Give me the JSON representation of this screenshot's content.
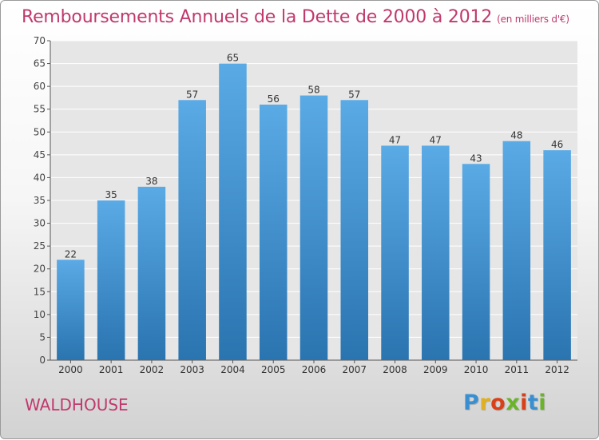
{
  "title": "Remboursements Annuels de la Dette de 2000 à 2012",
  "unit": "(en milliers d'€)",
  "commune": "WALDHOUSE",
  "logo": {
    "text": "Proxiti",
    "colors": [
      "#3a8fd0",
      "#e0b020",
      "#d8401a",
      "#6ab42a",
      "#d8401a",
      "#3a8fd0",
      "#6ab42a"
    ]
  },
  "colors": {
    "title": "#c0396d",
    "bar_top": "#5aaae6",
    "bar_bottom": "#2a74b0",
    "grid": "#ffffff"
  },
  "chart_data": {
    "type": "bar",
    "categories": [
      "2000",
      "2001",
      "2002",
      "2003",
      "2004",
      "2005",
      "2006",
      "2007",
      "2008",
      "2009",
      "2010",
      "2011",
      "2012"
    ],
    "values": [
      22,
      35,
      38,
      57,
      65,
      56,
      58,
      57,
      47,
      47,
      43,
      48,
      46
    ],
    "ylim": [
      0,
      70
    ],
    "yticks": [
      0,
      5,
      10,
      15,
      20,
      25,
      30,
      35,
      40,
      45,
      50,
      55,
      60,
      65,
      70
    ],
    "grid": true,
    "data_labels": true
  }
}
